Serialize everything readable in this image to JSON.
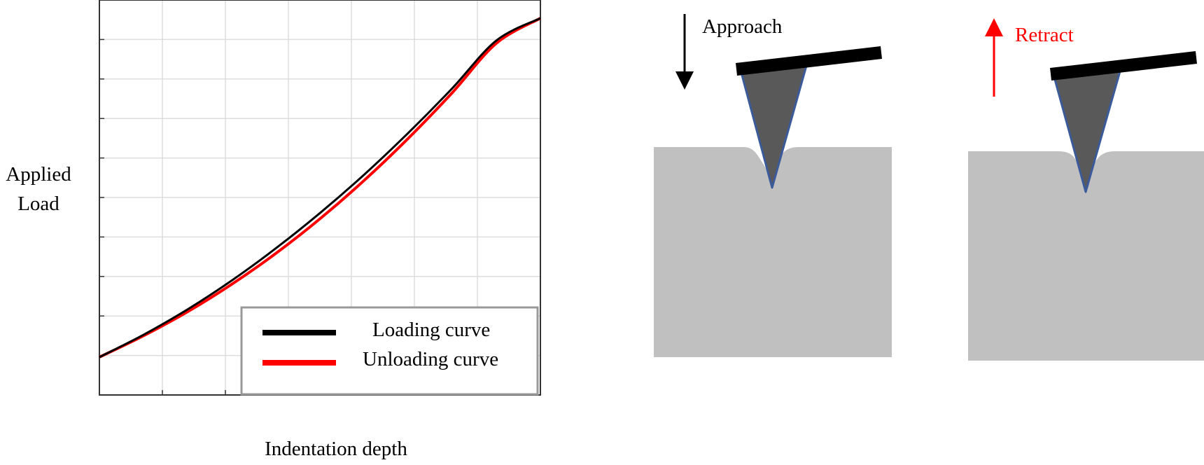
{
  "chart_data": {
    "type": "line",
    "title": "",
    "xlabel": "Indentation depth",
    "ylabel": "Applied Load",
    "grid": true,
    "legend": "bottom-right",
    "series": [
      {
        "name": "Loading curve",
        "color": "#000000",
        "x": [
          0,
          0.1,
          0.2,
          0.3,
          0.4,
          0.5,
          0.6,
          0.7,
          0.8,
          0.9,
          1.0
        ],
        "y": [
          0.0,
          0.066,
          0.141,
          0.226,
          0.321,
          0.425,
          0.538,
          0.661,
          0.793,
          0.934,
          1.0
        ]
      },
      {
        "name": "Unloading curve",
        "color": "#ff0000",
        "x": [
          0,
          0.1,
          0.2,
          0.3,
          0.4,
          0.5,
          0.6,
          0.7,
          0.8,
          0.9,
          1.0
        ],
        "y": [
          0.0,
          0.063,
          0.134,
          0.215,
          0.306,
          0.408,
          0.521,
          0.645,
          0.78,
          0.926,
          1.0
        ]
      }
    ]
  },
  "diagram": {
    "approach_label": "Approach",
    "retract_label": "Retract",
    "colors": {
      "sample": "#c0c0c0",
      "tip": "#595959",
      "tip_edge": "#3a5a9a",
      "cantilever": "#000000",
      "retract_arrow": "#ff0000",
      "approach_arrow": "#000000"
    }
  }
}
